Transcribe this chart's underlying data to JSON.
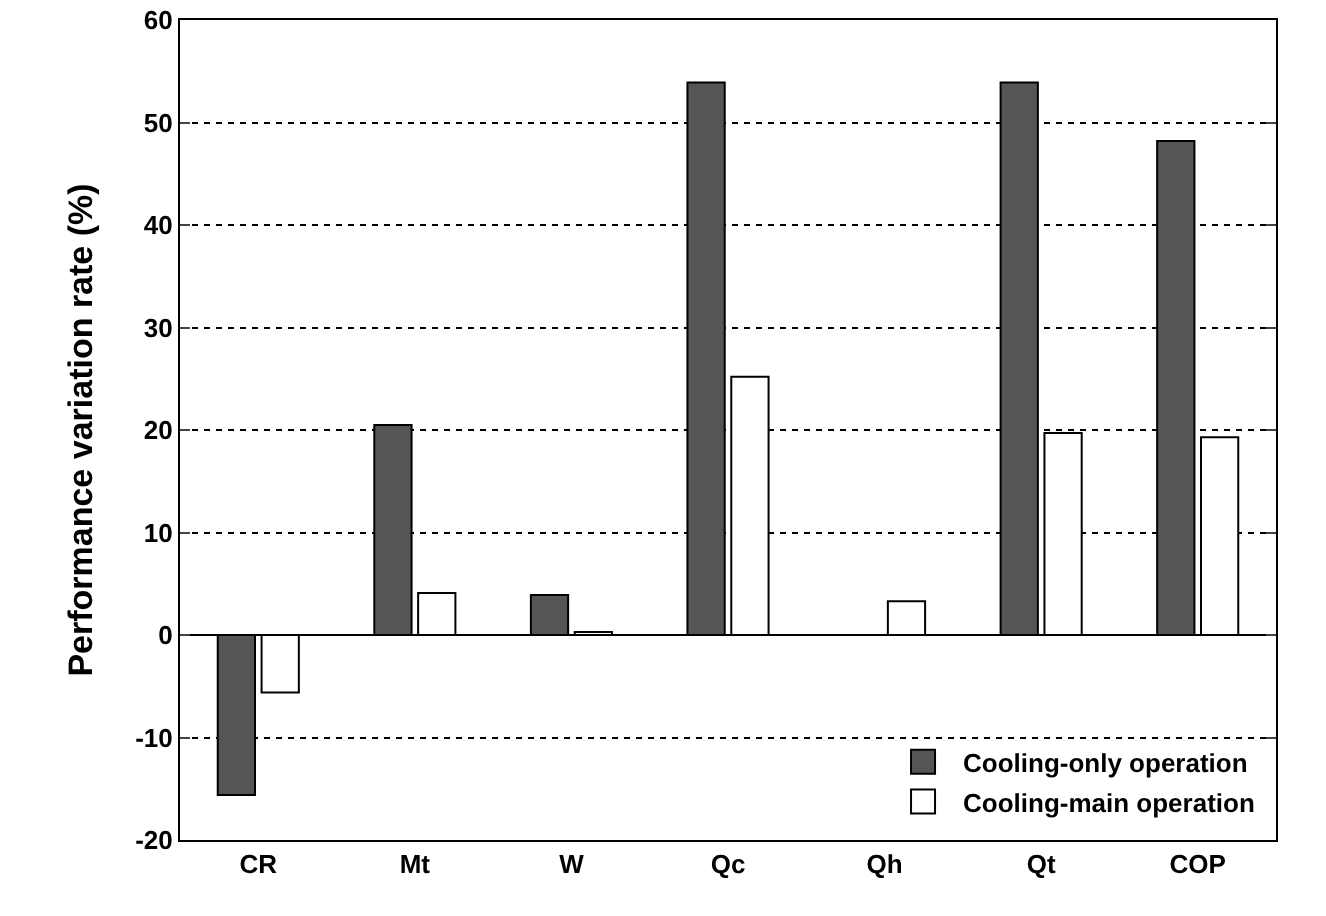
{
  "chart_data": {
    "type": "bar",
    "ylabel": "Performance variation rate (%)",
    "categories": [
      "CR",
      "Mt",
      "W",
      "Qc",
      "Qh",
      "Qt",
      "COP"
    ],
    "series": [
      {
        "name": "Cooling-only operation",
        "color": "#555555",
        "values": [
          -15.6,
          20.5,
          3.9,
          53.9,
          null,
          53.9,
          48.2
        ]
      },
      {
        "name": "Cooling-main operation",
        "color": "#ffffff",
        "values": [
          -5.6,
          4.1,
          0.3,
          25.2,
          3.3,
          19.7,
          19.3
        ]
      }
    ],
    "ylim": [
      -20,
      60
    ],
    "yticks": [
      -20,
      -10,
      0,
      10,
      20,
      30,
      40,
      50,
      60
    ],
    "grid": "y",
    "legend": "bottom right"
  }
}
